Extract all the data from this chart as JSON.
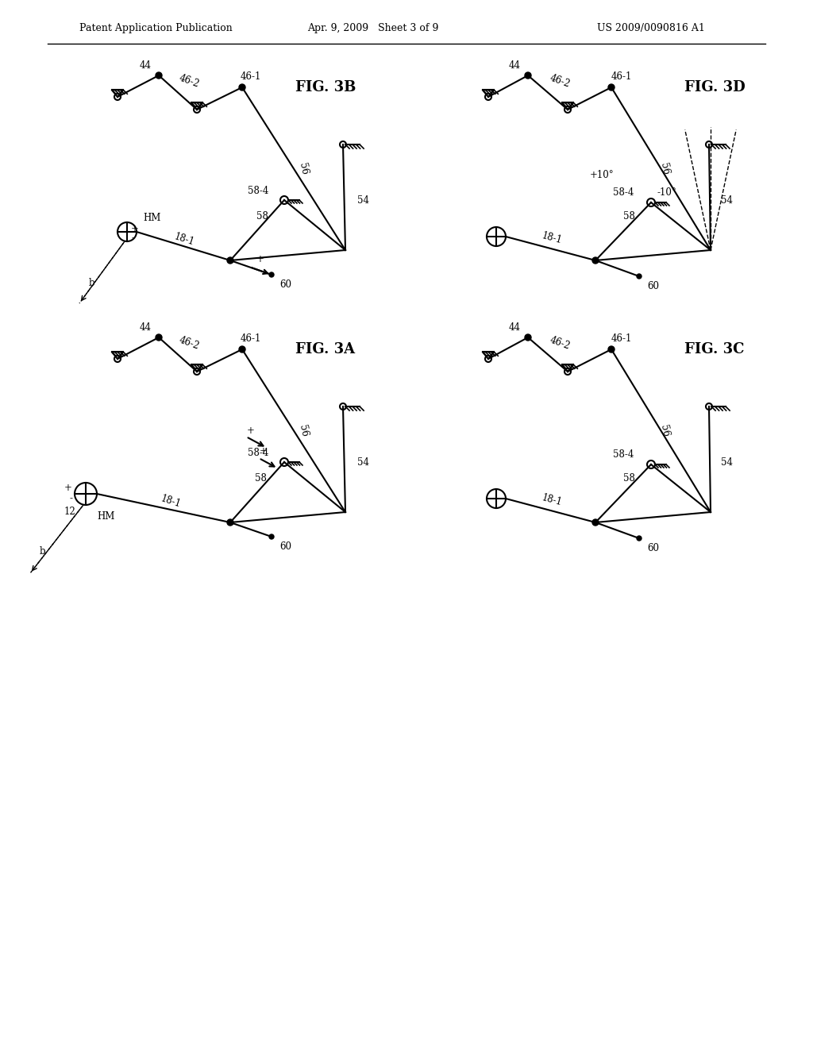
{
  "title_line1": "Patent Application Publication",
  "title_date": "Apr. 9, 2009",
  "title_sheet": "Sheet 3 of 9",
  "title_patent": "US 2009/0090816 A1",
  "background_color": "#ffffff",
  "line_color": "#000000",
  "fig_labels": [
    "FIG. 3B",
    "FIG. 3D",
    "FIG. 3A",
    "FIG. 3C"
  ]
}
